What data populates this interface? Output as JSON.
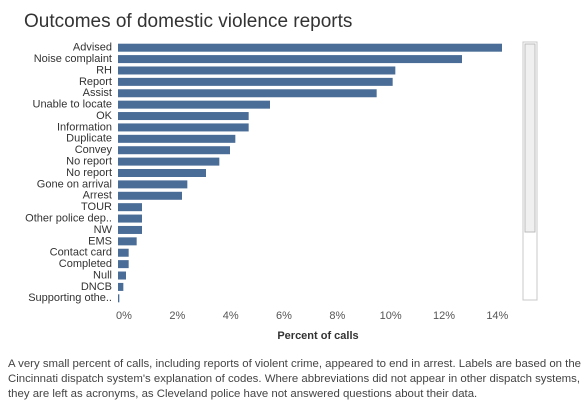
{
  "chart_data": {
    "type": "hbar",
    "title": "Outcomes of domestic violence reports",
    "x_label": "Percent of calls",
    "caption": "A very small percent of calls, including reports of violent crime, appeared to end in arrest. Labels are based on the Cincinnati dispatch system's explanation of codes. Where abbreviations did not appear in other dispatch systems, they are left as acronyms, as Cleveland police have not answered questions about their data.",
    "categories": [
      "Advised",
      "Noise complaint",
      "RH",
      "Report",
      "Assist",
      "Unable to locate",
      "OK",
      "Information",
      "Duplicate",
      "Convey",
      "No report",
      "No report",
      "Gone on arrival",
      "Arrest",
      "TOUR",
      "Other police dep..",
      "NW",
      "EMS",
      "Contact card",
      "Completed",
      "Null",
      "DNCB",
      "Supporting othe.."
    ],
    "values": [
      14.4,
      12.9,
      10.4,
      10.3,
      9.7,
      5.7,
      4.9,
      4.9,
      4.4,
      4.2,
      3.8,
      3.3,
      2.6,
      2.4,
      0.9,
      0.9,
      0.9,
      0.7,
      0.4,
      0.4,
      0.3,
      0.2,
      0.05
    ],
    "color": "#4a6d97",
    "xlim": [
      0,
      15
    ],
    "xticks": [
      {
        "value": 0,
        "label": "0%"
      },
      {
        "value": 2,
        "label": "2%"
      },
      {
        "value": 4,
        "label": "4%"
      },
      {
        "value": 6,
        "label": "6%"
      },
      {
        "value": 8,
        "label": "8%"
      },
      {
        "value": 10,
        "label": "10%"
      },
      {
        "value": 12,
        "label": "12%"
      },
      {
        "value": 14,
        "label": "14%"
      }
    ],
    "grid": false
  }
}
